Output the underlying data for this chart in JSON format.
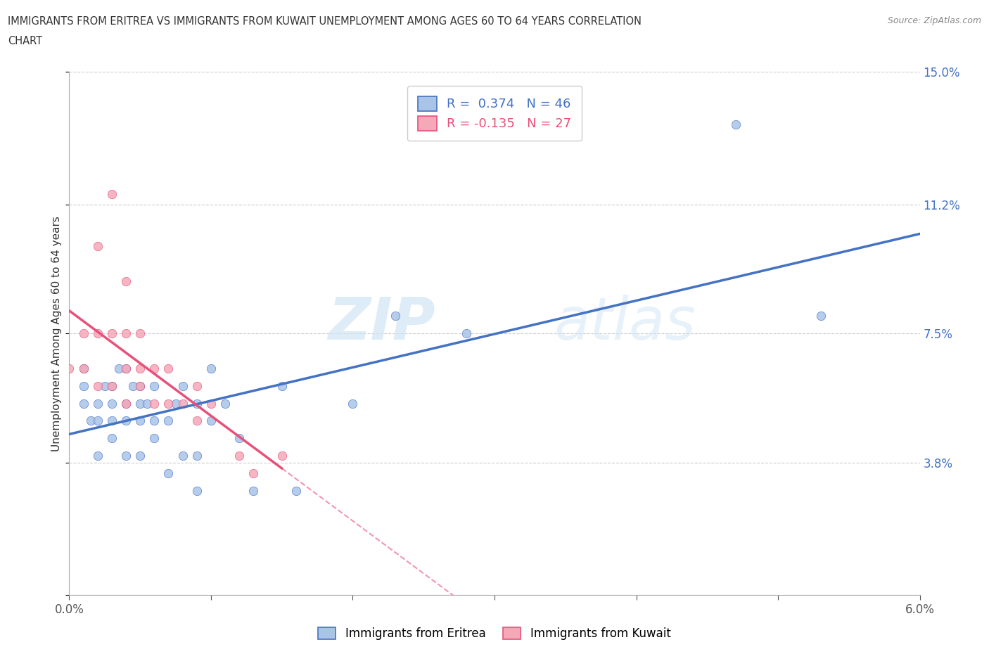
{
  "title_line1": "IMMIGRANTS FROM ERITREA VS IMMIGRANTS FROM KUWAIT UNEMPLOYMENT AMONG AGES 60 TO 64 YEARS CORRELATION",
  "title_line2": "CHART",
  "source": "Source: ZipAtlas.com",
  "ylabel": "Unemployment Among Ages 60 to 64 years",
  "xmin": 0.0,
  "xmax": 0.06,
  "ymin": 0.0,
  "ymax": 0.15,
  "yticks": [
    0.0,
    0.038,
    0.075,
    0.112,
    0.15
  ],
  "ytick_labels": [
    "",
    "3.8%",
    "7.5%",
    "11.2%",
    "15.0%"
  ],
  "xtick_labels": [
    "0.0%",
    "",
    "",
    "",
    "",
    "",
    "6.0%"
  ],
  "legend_eritrea": "Immigrants from Eritrea",
  "legend_kuwait": "Immigrants from Kuwait",
  "R_eritrea": 0.374,
  "N_eritrea": 46,
  "R_kuwait": -0.135,
  "N_kuwait": 27,
  "color_eritrea": "#aac4e8",
  "color_kuwait": "#f4a8b8",
  "line_color_eritrea": "#4472c4",
  "line_color_kuwait": "#e8507a",
  "eritrea_x": [
    0.001,
    0.001,
    0.001,
    0.0015,
    0.002,
    0.002,
    0.002,
    0.0025,
    0.003,
    0.003,
    0.003,
    0.003,
    0.0035,
    0.004,
    0.004,
    0.004,
    0.004,
    0.0045,
    0.005,
    0.005,
    0.005,
    0.005,
    0.0055,
    0.006,
    0.006,
    0.006,
    0.007,
    0.007,
    0.0075,
    0.008,
    0.008,
    0.009,
    0.009,
    0.009,
    0.01,
    0.01,
    0.011,
    0.012,
    0.013,
    0.015,
    0.016,
    0.02,
    0.023,
    0.028,
    0.047,
    0.053
  ],
  "eritrea_y": [
    0.055,
    0.06,
    0.065,
    0.05,
    0.04,
    0.05,
    0.055,
    0.06,
    0.045,
    0.05,
    0.055,
    0.06,
    0.065,
    0.04,
    0.05,
    0.055,
    0.065,
    0.06,
    0.04,
    0.05,
    0.055,
    0.06,
    0.055,
    0.045,
    0.05,
    0.06,
    0.035,
    0.05,
    0.055,
    0.04,
    0.06,
    0.03,
    0.04,
    0.055,
    0.065,
    0.05,
    0.055,
    0.045,
    0.03,
    0.06,
    0.03,
    0.055,
    0.08,
    0.075,
    0.135,
    0.08
  ],
  "kuwait_x": [
    0.0,
    0.001,
    0.001,
    0.002,
    0.002,
    0.002,
    0.003,
    0.003,
    0.003,
    0.004,
    0.004,
    0.004,
    0.004,
    0.005,
    0.005,
    0.005,
    0.006,
    0.006,
    0.007,
    0.007,
    0.008,
    0.009,
    0.009,
    0.01,
    0.012,
    0.013,
    0.015
  ],
  "kuwait_y": [
    0.065,
    0.065,
    0.075,
    0.06,
    0.075,
    0.1,
    0.06,
    0.075,
    0.115,
    0.055,
    0.065,
    0.075,
    0.09,
    0.06,
    0.065,
    0.075,
    0.055,
    0.065,
    0.055,
    0.065,
    0.055,
    0.05,
    0.06,
    0.055,
    0.04,
    0.035,
    0.04
  ],
  "watermark_part1": "ZIP",
  "watermark_part2": "atlas",
  "background_color": "#ffffff",
  "grid_color": "#cccccc"
}
